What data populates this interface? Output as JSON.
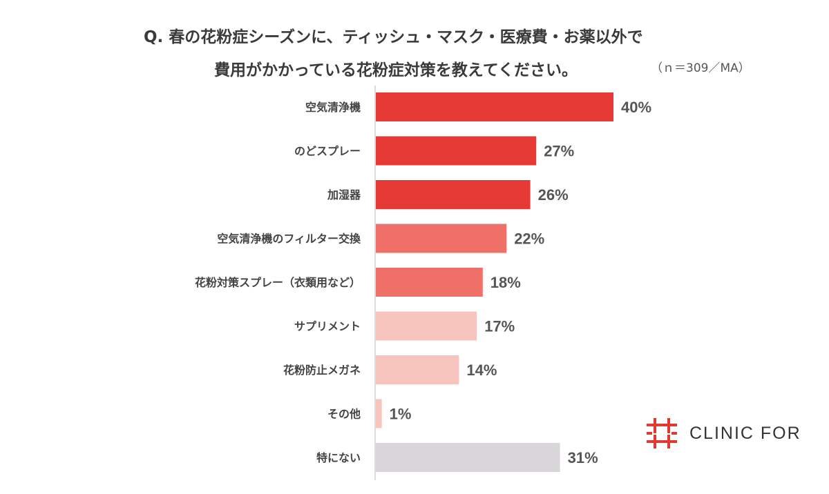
{
  "title": {
    "line1": "Q. 春の花粉症シーズンに、ティッシュ・マスク・医療費・お薬以外で",
    "line2": "費用がかかっている花粉症対策を教えてください。",
    "note": "（ｎ＝309／MA）"
  },
  "logo": {
    "text": "CLINIC FOR",
    "icon": "red-cross-logo-icon",
    "color": "#e03a32"
  },
  "chart_data": {
    "type": "bar",
    "orientation": "horizontal",
    "categories": [
      "空気清浄機",
      "のどスプレー",
      "加湿器",
      "空気清浄機のフィルター交換",
      "花粉対策スプレー（衣類用など）",
      "サプリメント",
      "花粉防止メガネ",
      "その他",
      "特にない"
    ],
    "values": [
      40,
      27,
      26,
      22,
      18,
      17,
      14,
      1,
      31
    ],
    "value_labels": [
      "40%",
      "27%",
      "26%",
      "22%",
      "18%",
      "17%",
      "14%",
      "1%",
      "31%"
    ],
    "unit": "%",
    "xlim": [
      0,
      50
    ],
    "grid": false,
    "colors": [
      "#e53935",
      "#e53935",
      "#e53935",
      "#ee7068",
      "#ee7068",
      "#f7c3bd",
      "#f7c3bd",
      "#f7c3bd",
      "#d8d6d9"
    ]
  }
}
